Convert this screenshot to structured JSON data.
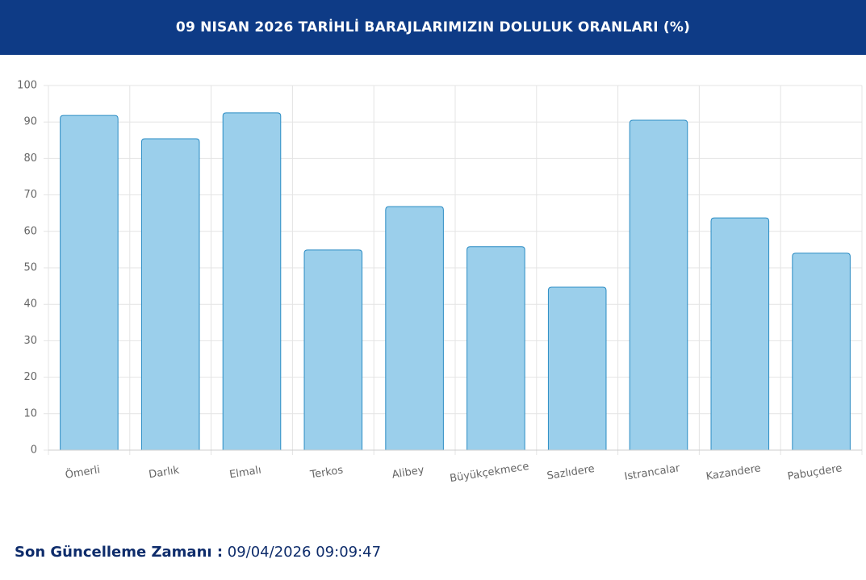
{
  "chart_data": {
    "type": "bar",
    "title": "09 NISAN 2026 TARİHLİ BARAJLARIMIZIN DOLULUK ORANLARI (%)",
    "categories": [
      "Ömerli",
      "Darlık",
      "Elmalı",
      "Terkos",
      "Alibey",
      "Büyükçekmece",
      "Sazlıdere",
      "Istrancalar",
      "Kazandere",
      "Pabuçdere"
    ],
    "values": [
      91.8,
      85.4,
      92.5,
      54.9,
      66.8,
      55.8,
      44.7,
      90.5,
      63.7,
      54.0
    ],
    "color": "#9bcfeb",
    "ylim": [
      0,
      100
    ],
    "yticks": [
      0,
      10,
      20,
      30,
      40,
      50,
      60,
      70,
      80,
      90,
      100
    ],
    "grid": true
  },
  "footer": {
    "label": "Son Güncelleme Zamanı :",
    "value": "09/04/2026 09:09:47"
  }
}
